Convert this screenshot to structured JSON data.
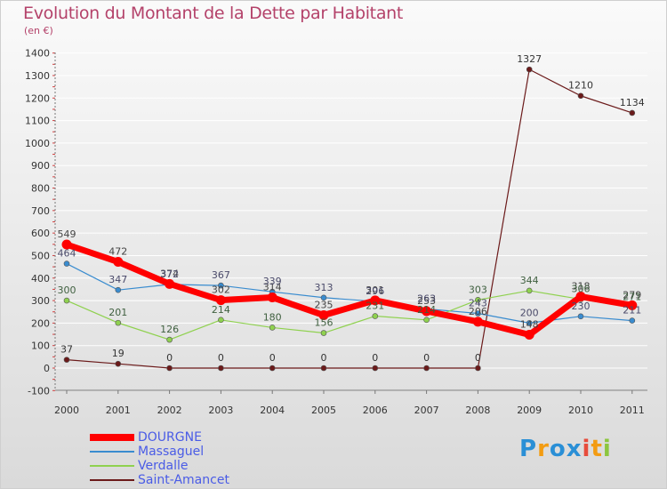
{
  "title": "Evolution du Montant de la Dette par Habitant",
  "subtitle": "(en €)",
  "logo": {
    "text": "Proxiti",
    "letters": [
      "P",
      "r",
      "o",
      "x",
      "i",
      "t",
      "i"
    ],
    "colors": [
      "#2a8fd6",
      "#f39c12",
      "#2a8fd6",
      "#2a8fd6",
      "#e74c3c",
      "#f39c12",
      "#8cc63f"
    ]
  },
  "chart_data": {
    "type": "line",
    "title": "Evolution du Montant de la Dette par Habitant",
    "ylabel": "(en €)",
    "categories": [
      "2000",
      "2001",
      "2002",
      "2003",
      "2004",
      "2005",
      "2006",
      "2007",
      "2008",
      "2009",
      "2010",
      "2011"
    ],
    "ylim": [
      -100,
      1400
    ],
    "yticks": [
      -100,
      0,
      100,
      200,
      300,
      400,
      500,
      600,
      700,
      800,
      900,
      1000,
      1100,
      1200,
      1300,
      1400
    ],
    "series": [
      {
        "name": "DOURGNE",
        "color": "#ff0000",
        "values": [
          549,
          472,
          374,
          302,
          314,
          235,
          301,
          253,
          206,
          148,
          318,
          279
        ]
      },
      {
        "name": "Massaguel",
        "color": "#3a8ccf",
        "values": [
          464,
          347,
          372,
          367,
          339,
          313,
          296,
          263,
          243,
          200,
          230,
          211
        ]
      },
      {
        "name": "Verdalle",
        "color": "#8fd14f",
        "values": [
          300,
          201,
          126,
          214,
          180,
          156,
          231,
          214,
          303,
          344,
          306,
          271
        ]
      },
      {
        "name": "Saint-Amancet",
        "color": "#6b1a1a",
        "values": [
          37,
          19,
          0,
          0,
          0,
          0,
          0,
          0,
          0,
          1327,
          1210,
          1134
        ]
      }
    ]
  }
}
